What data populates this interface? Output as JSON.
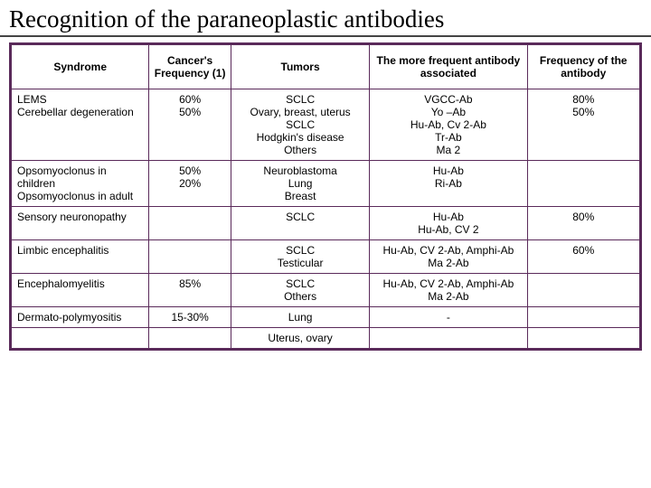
{
  "title": "Recognition of the paraneoplastic antibodies",
  "headers": {
    "syndrome": "Syndrome",
    "cancer_freq": "Cancer's Frequency (1)",
    "tumors": "Tumors",
    "antibody": "The more frequent antibody associated",
    "ab_freq": "Frequency of the antibody"
  },
  "rows": [
    {
      "syndrome": "LEMS\nCerebellar degeneration",
      "cancer_freq": "60%\n50%",
      "tumors": "SCLC\nOvary, breast, uterus\nSCLC\nHodgkin's disease\nOthers",
      "antibody": "VGCC-Ab\nYo –Ab\nHu-Ab, Cv 2-Ab\nTr-Ab\nMa 2",
      "ab_freq": "80%\n50%"
    },
    {
      "syndrome": "Opsomyoclonus in children\nOpsomyoclonus in adult",
      "cancer_freq": "50%\n20%",
      "tumors": "Neuroblastoma\nLung\nBreast",
      "antibody": "Hu-Ab\nRi-Ab",
      "ab_freq": ""
    },
    {
      "syndrome": "Sensory neuronopathy",
      "cancer_freq": "",
      "tumors": "SCLC",
      "antibody": "Hu-Ab\nHu-Ab, CV 2",
      "ab_freq": "80%"
    },
    {
      "syndrome": "Limbic encephalitis",
      "cancer_freq": "",
      "tumors": "SCLC\nTesticular",
      "antibody": "Hu-Ab, CV 2-Ab, Amphi-Ab\nMa 2-Ab",
      "ab_freq": "60%"
    },
    {
      "syndrome": "Encephalomyelitis",
      "cancer_freq": "85%",
      "tumors": "SCLC\nOthers",
      "antibody": "Hu-Ab, CV 2-Ab, Amphi-Ab\nMa 2-Ab",
      "ab_freq": ""
    },
    {
      "syndrome": "Dermato-polymyositis",
      "cancer_freq": "15-30%",
      "tumors": "Lung",
      "antibody": "-",
      "ab_freq": ""
    },
    {
      "syndrome": "",
      "cancer_freq": "",
      "tumors": "Uterus, ovary",
      "antibody": "",
      "ab_freq": ""
    }
  ],
  "colors": {
    "border": "#5a2a5a",
    "background": "#ffffff",
    "text": "#000000"
  }
}
